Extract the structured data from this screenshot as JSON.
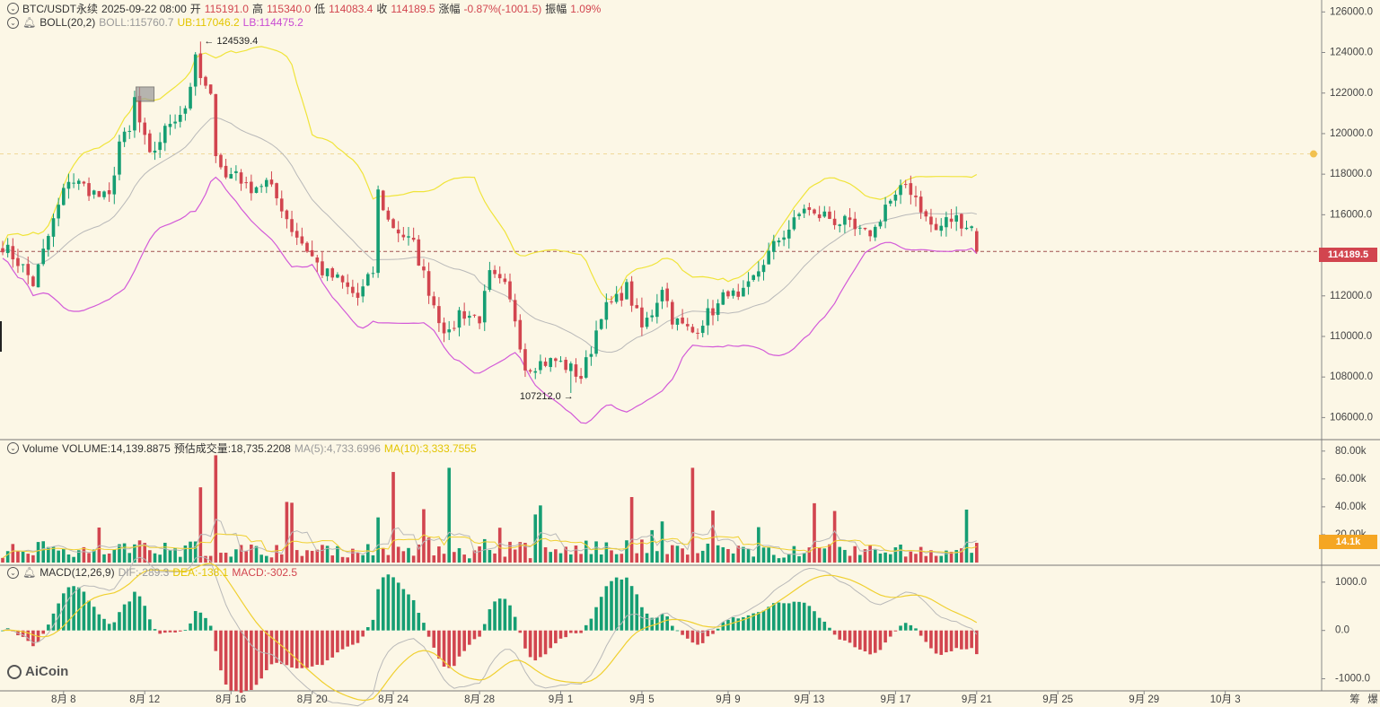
{
  "header": {
    "symbol": "BTC/USDT永续",
    "datetime": "2025-09-22 08:00",
    "open_label": "开",
    "open": "115191.0",
    "high_label": "高",
    "high": "115340.0",
    "low_label": "低",
    "low": "114083.4",
    "close_label": "收",
    "close": "114189.5",
    "change_label": "涨幅",
    "change": "-0.87%(-1001.5)",
    "amp_label": "振幅",
    "amp": "1.09%"
  },
  "boll": {
    "name": "BOLL(20,2)",
    "boll": "BOLL:115760.7",
    "ub": "UB:117046.2",
    "lb": "LB:114475.2",
    "colors": {
      "mid": "#b9b9b9",
      "ub": "#f0e43a",
      "lb": "#d35ad8"
    }
  },
  "volume": {
    "name": "Volume",
    "vol": "VOLUME:14,139.8875",
    "est": "预估成交量:18,735.2208",
    "ma5": "MA(5):4,733.6996",
    "ma10": "MA(10):3,333.7555",
    "tag": "14.1k"
  },
  "macd": {
    "name": "MACD(12,26,9)",
    "dif": "DIF:-289.3",
    "dea": "DEA:-138.1",
    "macd": "MACD:-302.5"
  },
  "logo": "AiCoin",
  "colors": {
    "up": "#159e73",
    "down": "#d2454f",
    "bg": "#fcf7e6",
    "tag_price": "#d2454f",
    "tag_vol": "#f5a623"
  },
  "chart_data": {
    "type": "candlestick",
    "price_axis": {
      "min": 105000,
      "max": 126500,
      "ticks": [
        106000,
        108000,
        110000,
        112000,
        114000,
        116000,
        118000,
        120000,
        122000,
        124000,
        126000
      ],
      "tick_labels": [
        "106000.0",
        "108000.0",
        "110000.0",
        "112000.0",
        "114000.0",
        "116000.0",
        "118000.0",
        "120000.0",
        "122000.0",
        "124000.0",
        "126000.0"
      ]
    },
    "current_price": "114189.5",
    "ref_line_price": 119000,
    "annotations": [
      {
        "text": "← 124539.4",
        "price": 124539.4,
        "date_index": 39
      },
      {
        "text": "107212.0 →",
        "price": 107212.0,
        "date_index": 112
      }
    ],
    "volume_axis": {
      "max": 85000,
      "ticks": [
        20000,
        40000,
        60000,
        80000
      ],
      "tick_labels": [
        "20.00k",
        "40.00k",
        "60.00k",
        "80.00k"
      ]
    },
    "macd_axis": {
      "min": -1250,
      "max": 1350,
      "ticks": [
        -1000,
        0,
        1000
      ],
      "tick_labels": [
        "-1000.0",
        "0.0",
        "1000.0"
      ]
    },
    "x_ticks": [
      {
        "label": "8月 8",
        "index": 12
      },
      {
        "label": "8月 12",
        "index": 28
      },
      {
        "label": "8月 16",
        "index": 45
      },
      {
        "label": "8月 20",
        "index": 61
      },
      {
        "label": "8月 24",
        "index": 77
      },
      {
        "label": "8月 28",
        "index": 94
      },
      {
        "label": "9月 1",
        "index": 110
      },
      {
        "label": "9月 5",
        "index": 126
      },
      {
        "label": "9月 9",
        "index": 143
      },
      {
        "label": "9月 13",
        "index": 159
      },
      {
        "label": "9月 17",
        "index": 176
      },
      {
        "label": "9月 21",
        "index": 192
      },
      {
        "label": "9月 25",
        "index": 208
      },
      {
        "label": "9月 29",
        "index": 225
      },
      {
        "label": "10月 3",
        "index": 241
      }
    ],
    "x_right_labels": [
      "筹",
      "爆"
    ],
    "keyframes": [
      [
        0,
        114500
      ],
      [
        4,
        113400
      ],
      [
        6,
        112600
      ],
      [
        10,
        115700
      ],
      [
        13,
        117800
      ],
      [
        16,
        117400
      ],
      [
        19,
        116900
      ],
      [
        21,
        116800
      ],
      [
        23,
        119600
      ],
      [
        25,
        120000
      ],
      [
        26,
        121700
      ],
      [
        27,
        120500
      ],
      [
        29,
        118800
      ],
      [
        31,
        119700
      ],
      [
        33,
        120600
      ],
      [
        36,
        121300
      ],
      [
        38,
        123600
      ],
      [
        39,
        122700
      ],
      [
        41,
        121700
      ],
      [
        42,
        119200
      ],
      [
        44,
        117800
      ],
      [
        46,
        118200
      ],
      [
        48,
        117300
      ],
      [
        52,
        117600
      ],
      [
        55,
        116400
      ],
      [
        57,
        115300
      ],
      [
        60,
        114300
      ],
      [
        63,
        113200
      ],
      [
        66,
        112800
      ],
      [
        70,
        111900
      ],
      [
        73,
        113200
      ],
      [
        74,
        117100
      ],
      [
        76,
        115700
      ],
      [
        78,
        115200
      ],
      [
        81,
        114500
      ],
      [
        84,
        112300
      ],
      [
        86,
        110900
      ],
      [
        88,
        110000
      ],
      [
        90,
        111200
      ],
      [
        94,
        110900
      ],
      [
        96,
        113000
      ],
      [
        99,
        112400
      ],
      [
        101,
        110900
      ],
      [
        103,
        108500
      ],
      [
        106,
        108700
      ],
      [
        109,
        108800
      ],
      [
        112,
        108400
      ],
      [
        114,
        108000
      ],
      [
        116,
        109400
      ],
      [
        118,
        111200
      ],
      [
        121,
        111800
      ],
      [
        123,
        112400
      ],
      [
        126,
        110400
      ],
      [
        128,
        111200
      ],
      [
        130,
        112500
      ],
      [
        132,
        110900
      ],
      [
        134,
        110500
      ],
      [
        136,
        110200
      ],
      [
        139,
        111100
      ],
      [
        141,
        111500
      ],
      [
        143,
        112300
      ],
      [
        145,
        111700
      ],
      [
        147,
        112400
      ],
      [
        150,
        113700
      ],
      [
        153,
        114800
      ],
      [
        156,
        115600
      ],
      [
        158,
        116400
      ],
      [
        160,
        115900
      ],
      [
        162,
        116000
      ],
      [
        164,
        115700
      ],
      [
        166,
        115600
      ],
      [
        168,
        115200
      ],
      [
        170,
        115000
      ],
      [
        172,
        115300
      ],
      [
        174,
        116500
      ],
      [
        176,
        116800
      ],
      [
        178,
        117500
      ],
      [
        180,
        116900
      ],
      [
        182,
        115800
      ],
      [
        184,
        115200
      ],
      [
        186,
        115700
      ],
      [
        188,
        115800
      ],
      [
        190,
        115500
      ],
      [
        191,
        115400
      ],
      [
        192,
        114600
      ]
    ]
  }
}
